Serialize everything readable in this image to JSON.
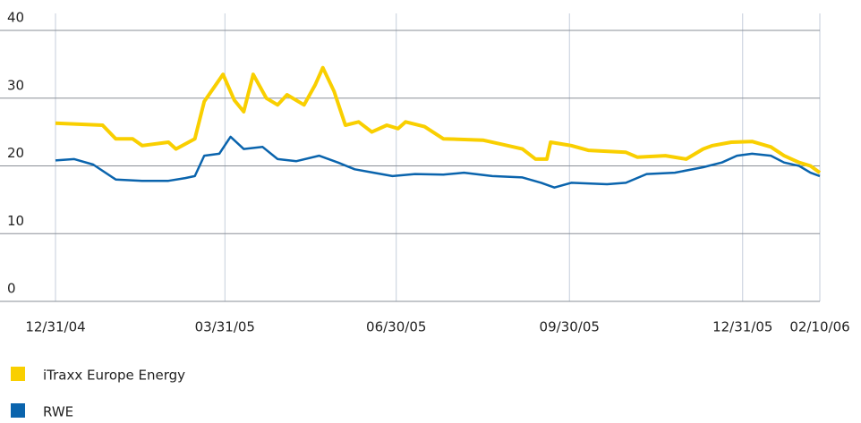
{
  "chart_data": {
    "type": "line",
    "xlim": [
      "2004-12-31",
      "2006-02-10"
    ],
    "xticks": [
      {
        "value": "2004-12-31",
        "label": "12/31/04"
      },
      {
        "value": "2005-03-31",
        "label": "03/31/05"
      },
      {
        "value": "2005-06-30",
        "label": "06/30/05"
      },
      {
        "value": "2005-09-30",
        "label": "09/30/05"
      },
      {
        "value": "2005-12-31",
        "label": "12/31/05"
      },
      {
        "value": "2006-02-10",
        "label": "02/10/06"
      }
    ],
    "ylim": [
      0,
      40
    ],
    "yticks": [
      0,
      10,
      20,
      30,
      40
    ],
    "grid": true,
    "series": [
      {
        "name": "iTraxx Europe Energy",
        "color": "#f9cf00",
        "x": [
          "2004-12-31",
          "2005-01-25",
          "2005-02-01",
          "2005-02-10",
          "2005-02-15",
          "2005-03-01",
          "2005-03-05",
          "2005-03-15",
          "2005-03-20",
          "2005-03-30",
          "2005-04-05",
          "2005-04-10",
          "2005-04-15",
          "2005-04-22",
          "2005-04-28",
          "2005-05-03",
          "2005-05-12",
          "2005-05-18",
          "2005-05-22",
          "2005-05-28",
          "2005-06-03",
          "2005-06-10",
          "2005-06-17",
          "2005-06-25",
          "2005-07-01",
          "2005-07-05",
          "2005-07-15",
          "2005-07-25",
          "2005-08-15",
          "2005-08-25",
          "2005-09-05",
          "2005-09-12",
          "2005-09-18",
          "2005-09-20",
          "2005-10-01",
          "2005-10-10",
          "2005-10-30",
          "2005-11-05",
          "2005-11-20",
          "2005-12-01",
          "2005-12-10",
          "2005-12-15",
          "2005-12-25",
          "2006-01-05",
          "2006-01-15",
          "2006-01-22",
          "2006-01-30",
          "2006-02-05",
          "2006-02-10"
        ],
        "values": [
          26.3,
          26,
          24,
          24,
          23,
          23.5,
          22.5,
          24,
          29.5,
          33.5,
          29.7,
          28,
          33.5,
          30,
          29,
          30.5,
          29,
          32,
          34.5,
          31,
          26,
          26.5,
          25,
          26,
          25.5,
          26.5,
          25.8,
          24,
          23.8,
          23.2,
          22.5,
          21,
          21,
          23.5,
          23,
          22.3,
          22,
          21.3,
          21.5,
          21,
          22.5,
          23,
          23.5,
          23.6,
          22.8,
          21.5,
          20.5,
          20,
          19
        ]
      },
      {
        "name": "RWE",
        "color": "#0a64ad",
        "x": [
          "2004-12-31",
          "2005-01-10",
          "2005-01-20",
          "2005-02-01",
          "2005-02-15",
          "2005-03-01",
          "2005-03-10",
          "2005-03-15",
          "2005-03-20",
          "2005-03-28",
          "2005-04-03",
          "2005-04-10",
          "2005-04-20",
          "2005-04-28",
          "2005-05-08",
          "2005-05-20",
          "2005-05-30",
          "2005-06-08",
          "2005-06-18",
          "2005-06-28",
          "2005-07-10",
          "2005-07-25",
          "2005-08-05",
          "2005-08-20",
          "2005-09-05",
          "2005-09-15",
          "2005-09-22",
          "2005-10-01",
          "2005-10-20",
          "2005-10-30",
          "2005-11-10",
          "2005-11-25",
          "2005-12-10",
          "2005-12-20",
          "2005-12-28",
          "2006-01-05",
          "2006-01-15",
          "2006-01-22",
          "2006-01-30",
          "2006-02-05",
          "2006-02-10"
        ],
        "values": [
          20.8,
          21,
          20.2,
          18,
          17.8,
          17.8,
          18.2,
          18.5,
          21.5,
          21.8,
          24.3,
          22.5,
          22.8,
          21,
          20.7,
          21.5,
          20.5,
          19.5,
          19,
          18.5,
          18.8,
          18.7,
          19,
          18.5,
          18.3,
          17.5,
          16.8,
          17.5,
          17.3,
          17.5,
          18.8,
          19,
          19.8,
          20.5,
          21.5,
          21.8,
          21.5,
          20.5,
          20,
          19,
          18.5
        ]
      }
    ]
  }
}
